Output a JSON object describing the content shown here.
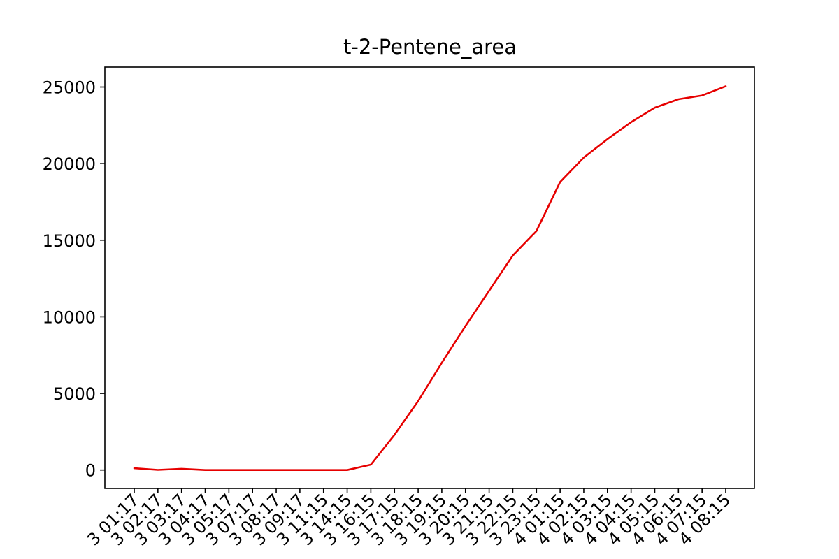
{
  "chart_data": {
    "type": "line",
    "title": "t-2-Pentene_area",
    "xlabel": "",
    "ylabel": "",
    "ylim": [
      -1200,
      26300
    ],
    "y_ticks": [
      0,
      5000,
      10000,
      15000,
      20000,
      25000
    ],
    "y_tick_labels": [
      "0",
      "5000",
      "10000",
      "15000",
      "20000",
      "25000"
    ],
    "grid": false,
    "legend": "none",
    "x_tick_labels": [
      "3 01:17",
      "3 02:17",
      "3 03:17",
      "3 04:17",
      "3 05:17",
      "3 07:17",
      "3 08:17",
      "3 09:17",
      "3 11:15",
      "3 14:15",
      "3 16:15",
      "3 17:15",
      "3 18:15",
      "3 19:15",
      "3 20:15",
      "3 21:15",
      "3 22:15",
      "3 23:15",
      "4 01:15",
      "4 02:15",
      "4 03:15",
      "4 04:15",
      "4 05:15",
      "4 06:15",
      "4 07:15",
      "4 08:15"
    ],
    "series": [
      {
        "color": "#e60000",
        "values": [
          120,
          10,
          80,
          0,
          0,
          0,
          0,
          0,
          0,
          0,
          350,
          2300,
          4500,
          7000,
          9400,
          11700,
          14000,
          15600,
          18800,
          20400,
          21600,
          22700,
          23650,
          24200,
          24450,
          25050
        ]
      }
    ]
  }
}
